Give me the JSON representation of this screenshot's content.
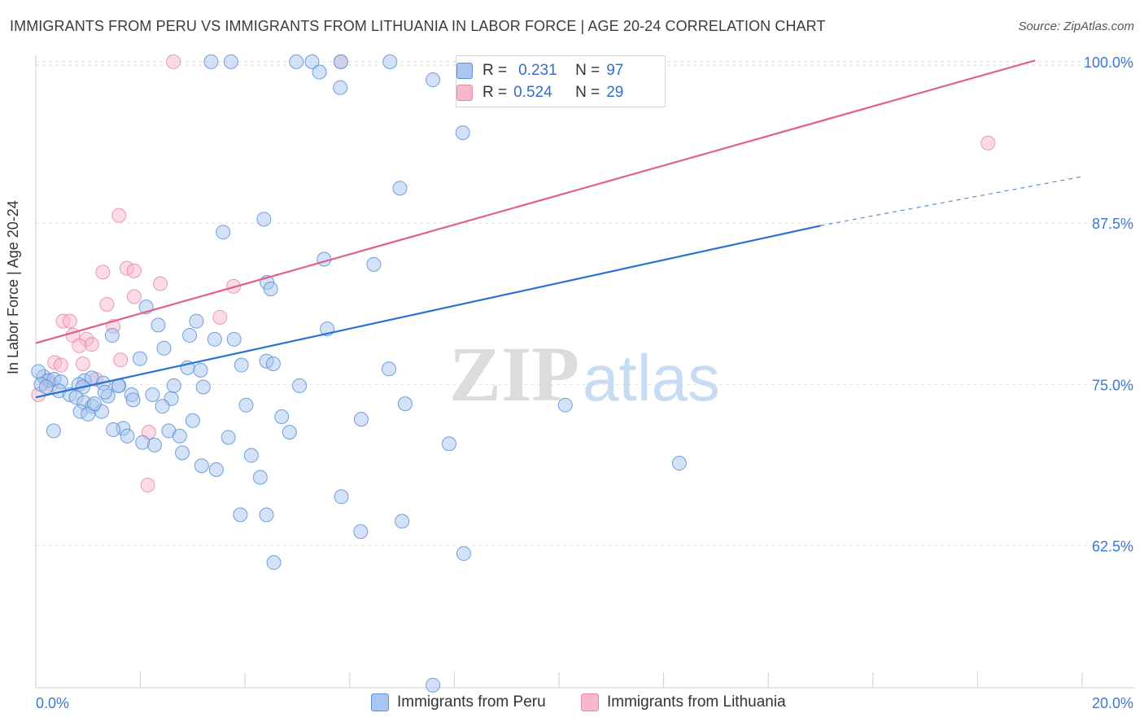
{
  "title": "IMMIGRANTS FROM PERU VS IMMIGRANTS FROM LITHUANIA IN LABOR FORCE | AGE 20-24 CORRELATION CHART",
  "source": "Source: ZipAtlas.com",
  "watermark": {
    "zip": "ZIP",
    "atlas": "atlas"
  },
  "legend": {
    "r_label": "R =",
    "n_label": "N =",
    "series": [
      {
        "r": "0.231",
        "n": "97"
      },
      {
        "r": "0.524",
        "n": "29"
      }
    ]
  },
  "colors": {
    "peru_fill": "#a8c6f0",
    "peru_stroke": "#5b8fd6",
    "peru_line": "#2a72d0",
    "lith_fill": "#f7b8cc",
    "lith_stroke": "#e889a6",
    "lith_line": "#e0608a",
    "axis_text": "#3d78d0"
  },
  "chart_data": {
    "type": "scatter",
    "title": "IMMIGRANTS FROM PERU VS IMMIGRANTS FROM LITHUANIA IN LABOR FORCE | AGE 20-24 CORRELATION CHART",
    "xlabel": "",
    "ylabel": "In Labor Force | Age 20-24",
    "xlim": [
      0,
      20
    ],
    "ylim": [
      51.5,
      101
    ],
    "x_tick_labels": [
      "0.0%",
      "20.0%"
    ],
    "y_ticks": [
      62.5,
      75.0,
      87.5,
      100.0
    ],
    "y_tick_labels": [
      "62.5%",
      "75.0%",
      "87.5%",
      "100.0%"
    ],
    "grid": true,
    "legend_position": "top-center",
    "series": [
      {
        "name": "Immigrants from Peru",
        "r": 0.231,
        "n": 97,
        "trend": {
          "x": [
            0,
            15.0
          ],
          "y": [
            74.0,
            87.3
          ],
          "dashed_to": [
            20,
            91.1
          ]
        },
        "points": [
          [
            3.35,
            100
          ],
          [
            3.73,
            100
          ],
          [
            4.98,
            100
          ],
          [
            5.28,
            100
          ],
          [
            5.83,
            100
          ],
          [
            6.77,
            100
          ],
          [
            5.42,
            99.2
          ],
          [
            7.59,
            98.6
          ],
          [
            5.82,
            98.0
          ],
          [
            8.16,
            94.5
          ],
          [
            6.96,
            90.2
          ],
          [
            4.36,
            87.8
          ],
          [
            3.58,
            86.8
          ],
          [
            5.51,
            84.7
          ],
          [
            6.46,
            84.3
          ],
          [
            4.42,
            82.9
          ],
          [
            4.49,
            82.4
          ],
          [
            2.11,
            81.0
          ],
          [
            2.34,
            79.6
          ],
          [
            3.07,
            79.9
          ],
          [
            5.57,
            79.3
          ],
          [
            1.46,
            78.8
          ],
          [
            2.94,
            78.8
          ],
          [
            3.42,
            78.5
          ],
          [
            3.79,
            78.5
          ],
          [
            2.45,
            77.8
          ],
          [
            1.99,
            77.0
          ],
          [
            4.41,
            76.8
          ],
          [
            4.54,
            76.6
          ],
          [
            3.93,
            76.5
          ],
          [
            2.9,
            76.3
          ],
          [
            3.15,
            76.1
          ],
          [
            6.75,
            76.2
          ],
          [
            0.15,
            75.6
          ],
          [
            0.25,
            75.3
          ],
          [
            0.35,
            75.4
          ],
          [
            0.48,
            75.2
          ],
          [
            0.93,
            75.3
          ],
          [
            1.07,
            75.5
          ],
          [
            1.29,
            75.1
          ],
          [
            0.82,
            75.0
          ],
          [
            0.9,
            74.8
          ],
          [
            1.59,
            74.9
          ],
          [
            2.64,
            74.9
          ],
          [
            3.2,
            74.8
          ],
          [
            5.04,
            74.9
          ],
          [
            0.44,
            74.5
          ],
          [
            0.65,
            74.2
          ],
          [
            0.77,
            74.0
          ],
          [
            1.38,
            74.1
          ],
          [
            1.32,
            74.4
          ],
          [
            1.83,
            74.2
          ],
          [
            2.23,
            74.2
          ],
          [
            1.86,
            73.8
          ],
          [
            2.59,
            73.9
          ],
          [
            0.92,
            73.6
          ],
          [
            1.08,
            73.3
          ],
          [
            2.42,
            73.3
          ],
          [
            4.02,
            73.4
          ],
          [
            7.06,
            73.5
          ],
          [
            10.12,
            73.4
          ],
          [
            0.85,
            72.9
          ],
          [
            1.0,
            72.7
          ],
          [
            1.26,
            72.9
          ],
          [
            4.7,
            72.5
          ],
          [
            6.22,
            72.3
          ],
          [
            3.0,
            72.2
          ],
          [
            1.67,
            71.6
          ],
          [
            1.48,
            71.5
          ],
          [
            2.54,
            71.4
          ],
          [
            4.85,
            71.3
          ],
          [
            0.34,
            71.4
          ],
          [
            1.75,
            71.0
          ],
          [
            2.75,
            71.0
          ],
          [
            3.68,
            70.9
          ],
          [
            2.04,
            70.5
          ],
          [
            2.27,
            70.3
          ],
          [
            7.9,
            70.4
          ],
          [
            2.8,
            69.7
          ],
          [
            4.12,
            69.5
          ],
          [
            3.17,
            68.7
          ],
          [
            3.45,
            68.4
          ],
          [
            12.3,
            68.9
          ],
          [
            4.29,
            67.8
          ],
          [
            5.84,
            66.3
          ],
          [
            3.91,
            64.9
          ],
          [
            4.41,
            64.9
          ],
          [
            7.0,
            64.4
          ],
          [
            6.21,
            63.6
          ],
          [
            8.18,
            61.9
          ],
          [
            4.55,
            61.2
          ],
          [
            7.59,
            51.7
          ],
          [
            0.05,
            76.0
          ],
          [
            0.1,
            75.0
          ],
          [
            0.2,
            74.8
          ],
          [
            1.12,
            73.5
          ],
          [
            1.58,
            74.9
          ]
        ]
      },
      {
        "name": "Immigrants from Lithuania",
        "r": 0.524,
        "n": 29,
        "trend": {
          "x": [
            0,
            19.1
          ],
          "y": [
            78.2,
            100.1
          ]
        },
        "points": [
          [
            2.63,
            100
          ],
          [
            5.83,
            100
          ],
          [
            18.2,
            93.7
          ],
          [
            1.59,
            88.1
          ],
          [
            1.28,
            83.7
          ],
          [
            1.74,
            84.0
          ],
          [
            1.88,
            83.8
          ],
          [
            2.38,
            82.8
          ],
          [
            3.78,
            82.6
          ],
          [
            1.88,
            81.8
          ],
          [
            1.36,
            81.2
          ],
          [
            3.52,
            80.2
          ],
          [
            0.52,
            79.9
          ],
          [
            0.65,
            79.9
          ],
          [
            1.48,
            79.5
          ],
          [
            0.71,
            78.8
          ],
          [
            0.97,
            78.5
          ],
          [
            1.07,
            78.1
          ],
          [
            0.83,
            78.0
          ],
          [
            0.36,
            76.7
          ],
          [
            0.48,
            76.5
          ],
          [
            1.62,
            76.9
          ],
          [
            0.9,
            76.6
          ],
          [
            1.15,
            75.4
          ],
          [
            0.2,
            75.3
          ],
          [
            0.3,
            75.0
          ],
          [
            0.05,
            74.2
          ],
          [
            2.16,
            71.3
          ],
          [
            2.14,
            67.2
          ]
        ]
      }
    ]
  },
  "bottom_legend": [
    "Immigrants from Peru",
    "Immigrants from Lithuania"
  ]
}
